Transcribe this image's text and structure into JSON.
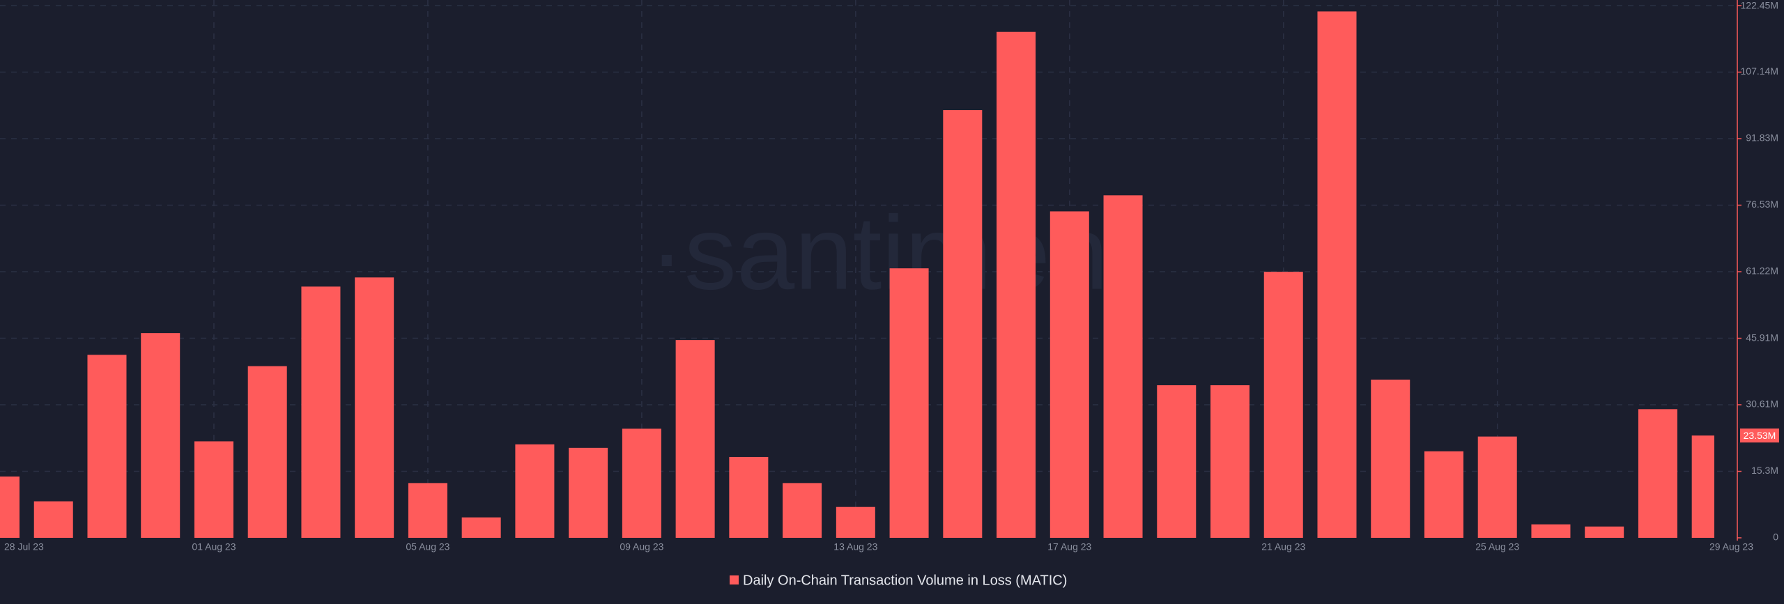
{
  "chart_data": {
    "type": "bar",
    "watermark": "·santiment",
    "categories": [
      "28 Jul 23",
      null,
      null,
      null,
      "01 Aug 23",
      null,
      null,
      null,
      "05 Aug 23",
      null,
      null,
      null,
      "09 Aug 23",
      null,
      null,
      null,
      "13 Aug 23",
      null,
      null,
      null,
      "17 Aug 23",
      null,
      null,
      null,
      "21 Aug 23",
      null,
      null,
      null,
      "25 Aug 23",
      null,
      null,
      null,
      "29 Aug 23"
    ],
    "series": [
      {
        "name": "Daily On-Chain Transaction Volume in Loss (MATIC)",
        "color": "#ff5b5b",
        "values": [
          14100000,
          8400000,
          42100000,
          47100000,
          22200000,
          39500000,
          57800000,
          59900000,
          12600000,
          4700000,
          21500000,
          20700000,
          25100000,
          45500000,
          18600000,
          12600000,
          7100000,
          62000000,
          98400000,
          116400000,
          75100000,
          78800000,
          35100000,
          35100000,
          61200000,
          121100000,
          36400000,
          19900000,
          23300000,
          3100000,
          2600000,
          29600000,
          23530000
        ]
      }
    ],
    "current_value": {
      "value": 23530000,
      "label": "23.53M"
    },
    "ylim": [
      0,
      122450000
    ],
    "yticks": [
      0,
      {
        "value": 15300000,
        "label": "15.3M"
      },
      {
        "value": 30610000,
        "label": "30.61M"
      },
      {
        "value": 45910000,
        "label": "45.91M"
      },
      {
        "value": 61220000,
        "label": "61.22M"
      },
      {
        "value": 76530000,
        "label": "76.53M"
      },
      {
        "value": 91830000,
        "label": "91.83M"
      },
      {
        "value": 107140000,
        "label": "107.14M"
      },
      {
        "value": 122450000,
        "label": "122.45M"
      }
    ],
    "grid": true
  }
}
